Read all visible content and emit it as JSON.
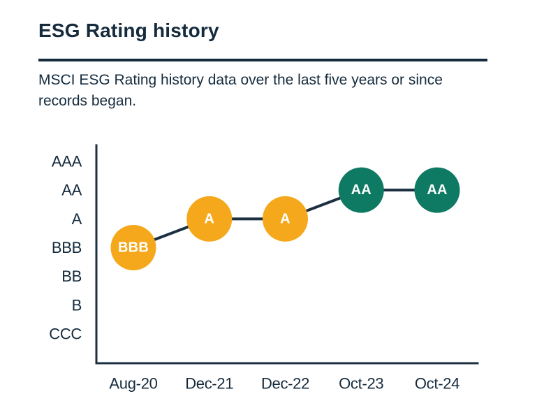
{
  "page": {
    "title": "ESG Rating history",
    "description": "MSCI ESG Rating history data over the last five years or since records began."
  },
  "colors": {
    "text": "#152b3d",
    "axis_line": "#1c3042",
    "series_line": "#1c3042",
    "average_rating": "#f5a81c",
    "leader_rating": "#0f7a64",
    "point_label": "#ffffff",
    "background": "#ffffff"
  },
  "chart_data": {
    "type": "line",
    "title": "ESG Rating history",
    "x_labels": [
      "Aug-20",
      "Dec-21",
      "Dec-22",
      "Oct-23",
      "Oct-24"
    ],
    "y_labels_top_to_bottom": [
      "AAA",
      "AA",
      "A",
      "BBB",
      "BB",
      "B",
      "CCC"
    ],
    "points": [
      {
        "x": "Aug-20",
        "rating": "BBB",
        "color": "#f5a81c"
      },
      {
        "x": "Dec-21",
        "rating": "A",
        "color": "#f5a81c"
      },
      {
        "x": "Dec-22",
        "rating": "A",
        "color": "#f5a81c"
      },
      {
        "x": "Oct-23",
        "rating": "AA",
        "color": "#0f7a64"
      },
      {
        "x": "Oct-24",
        "rating": "AA",
        "color": "#0f7a64"
      }
    ],
    "grid": false,
    "legend": false,
    "xlabel": "",
    "ylabel": ""
  }
}
